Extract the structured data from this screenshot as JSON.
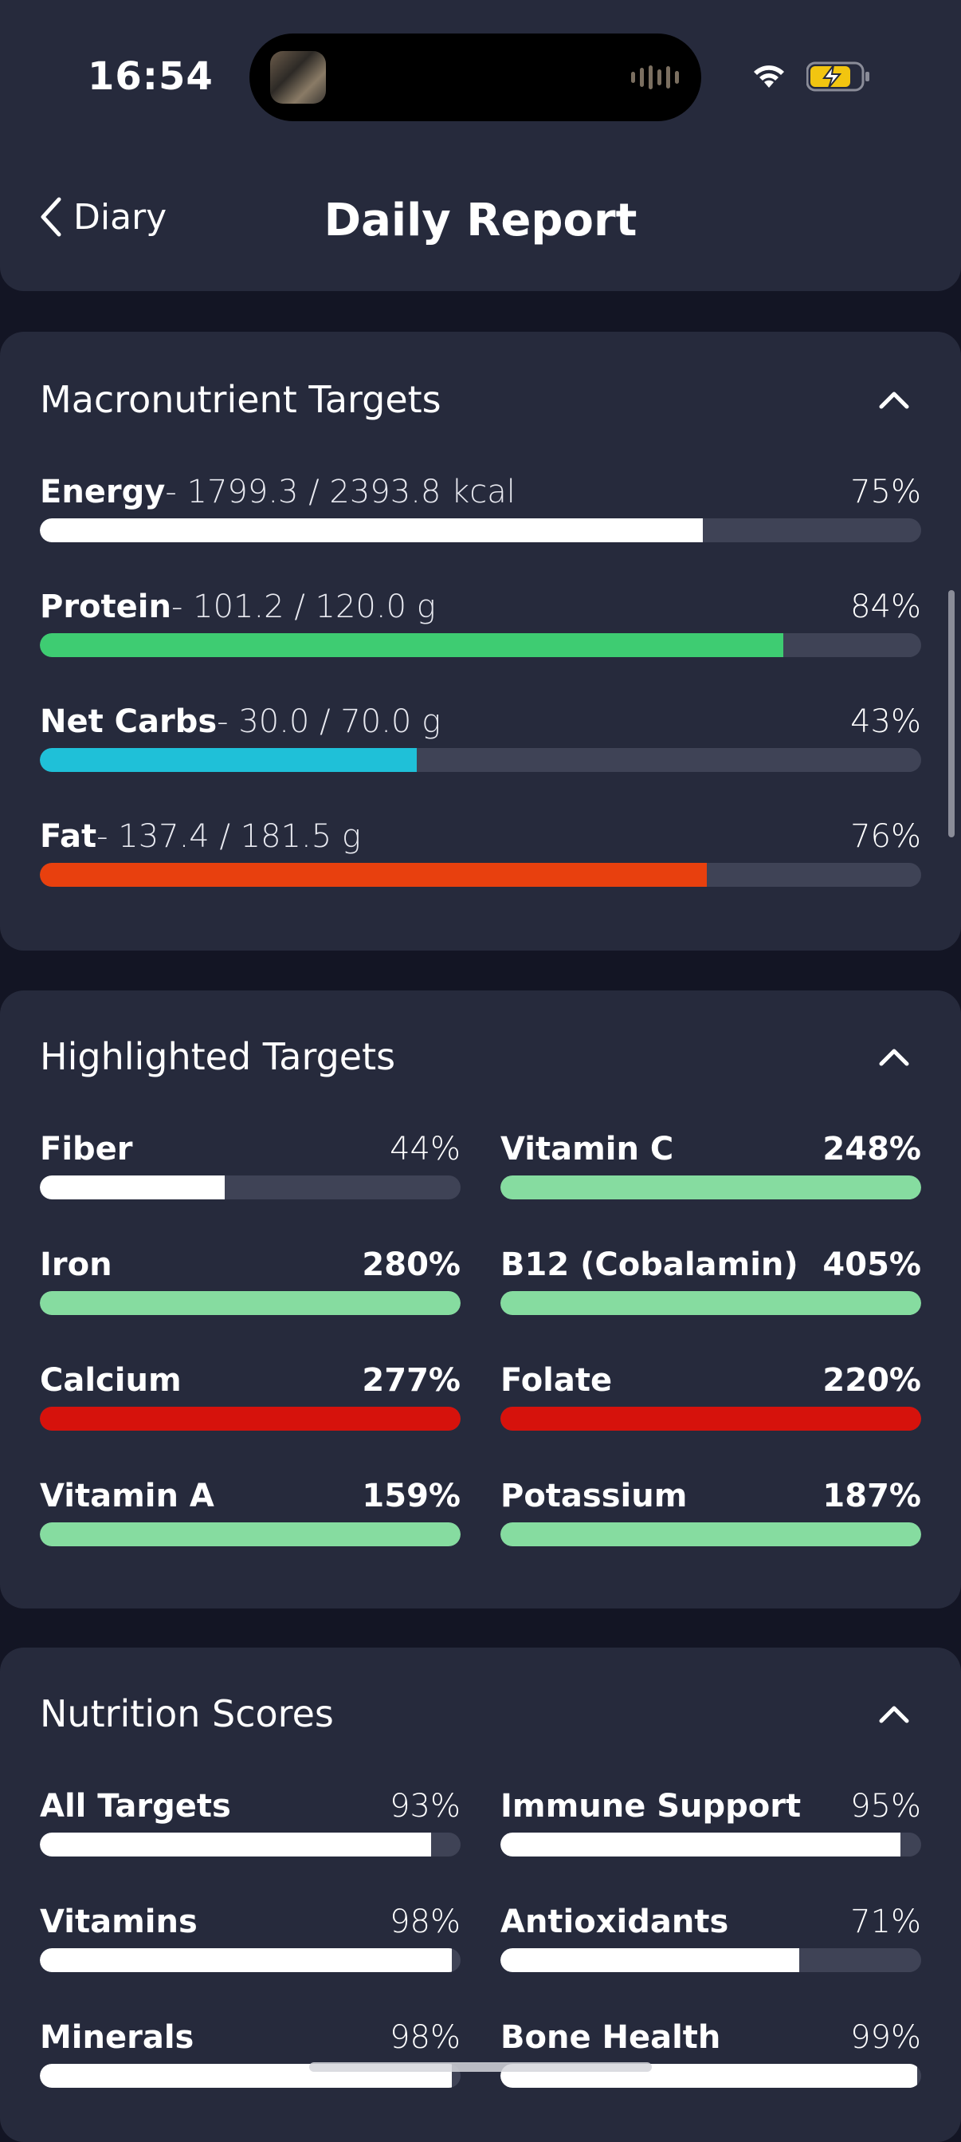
{
  "status_bar": {
    "time": "16:54"
  },
  "nav": {
    "back_label": "Diary",
    "title": "Daily Report"
  },
  "macros": {
    "title": "Macronutrient Targets",
    "items": [
      {
        "name": "Energy",
        "amount": "- 1799.3 / 2393.8 kcal",
        "percent": "75%",
        "fill": 0.752,
        "color": "#ffffff"
      },
      {
        "name": "Protein",
        "amount": "- 101.2 / 120.0 g",
        "percent": "84%",
        "fill": 0.844,
        "color": "#3ecc72"
      },
      {
        "name": "Net Carbs",
        "amount": "- 30.0 / 70.0 g",
        "percent": "43%",
        "fill": 0.428,
        "color": "#1fc0d8"
      },
      {
        "name": "Fat",
        "amount": "- 137.4 / 181.5 g",
        "percent": "76%",
        "fill": 0.757,
        "color": "#e8400e"
      }
    ]
  },
  "highlighted": {
    "title": "Highlighted Targets",
    "items": [
      {
        "name": "Fiber",
        "percent": "44%",
        "fill": 0.44,
        "color": "#ffffff",
        "bold": false
      },
      {
        "name": "Vitamin C",
        "percent": "248%",
        "fill": 1,
        "color": "#86dca0",
        "bold": true
      },
      {
        "name": "Iron",
        "percent": "280%",
        "fill": 1,
        "color": "#86dca0",
        "bold": true
      },
      {
        "name": "B12 (Cobalamin)",
        "percent": "405%",
        "fill": 1,
        "color": "#86dca0",
        "bold": true
      },
      {
        "name": "Calcium",
        "percent": "277%",
        "fill": 1,
        "color": "#d6120c",
        "bold": true
      },
      {
        "name": "Folate",
        "percent": "220%",
        "fill": 1,
        "color": "#d6120c",
        "bold": true
      },
      {
        "name": "Vitamin A",
        "percent": "159%",
        "fill": 1,
        "color": "#86dca0",
        "bold": true
      },
      {
        "name": "Potassium",
        "percent": "187%",
        "fill": 1,
        "color": "#86dca0",
        "bold": true
      }
    ]
  },
  "scores": {
    "title": "Nutrition Scores",
    "items": [
      {
        "name": "All Targets",
        "percent": "93%",
        "fill": 0.93,
        "color": "#ffffff",
        "bold": false
      },
      {
        "name": "Immune Support",
        "percent": "95%",
        "fill": 0.95,
        "color": "#ffffff",
        "bold": false
      },
      {
        "name": "Vitamins",
        "percent": "98%",
        "fill": 0.98,
        "color": "#ffffff",
        "bold": false
      },
      {
        "name": "Antioxidants",
        "percent": "71%",
        "fill": 0.71,
        "color": "#ffffff",
        "bold": false
      },
      {
        "name": "Minerals",
        "percent": "98%",
        "fill": 0.98,
        "color": "#ffffff",
        "bold": false
      },
      {
        "name": "Bone Health",
        "percent": "99%",
        "fill": 0.99,
        "color": "#ffffff",
        "bold": false
      }
    ]
  }
}
